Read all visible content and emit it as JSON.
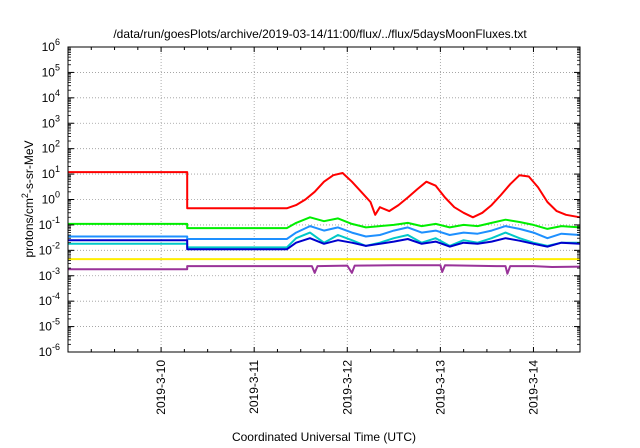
{
  "chart_data": {
    "type": "line",
    "title": "/data/run/goesPlots/archive/2019-03-14/11:00/flux/../flux/5daysMoonFluxes.txt",
    "xlabel": "Coordinated Universal Time (UTC)",
    "ylabel": {
      "base": "protons/cm",
      "exp": "2",
      "rest": "-s-sr-MeV"
    },
    "yscale": "log",
    "ylim": [
      1e-06,
      1000000.0
    ],
    "y_ticks": [
      {
        "base": "10",
        "exp": "-6",
        "value": -6
      },
      {
        "base": "10",
        "exp": "-5",
        "value": -5
      },
      {
        "base": "10",
        "exp": "-4",
        "value": -4
      },
      {
        "base": "10",
        "exp": "-3",
        "value": -3
      },
      {
        "base": "10",
        "exp": "-2",
        "value": -2
      },
      {
        "base": "10",
        "exp": "-1",
        "value": -1
      },
      {
        "base": "10",
        "exp": "0",
        "value": 0
      },
      {
        "base": "10",
        "exp": "1",
        "value": 1
      },
      {
        "base": "10",
        "exp": "2",
        "value": 2
      },
      {
        "base": "10",
        "exp": "3",
        "value": 3
      },
      {
        "base": "10",
        "exp": "4",
        "value": 4
      },
      {
        "base": "10",
        "exp": "5",
        "value": 5
      },
      {
        "base": "10",
        "exp": "6",
        "value": 6
      }
    ],
    "xlim": [
      9.0,
      14.5
    ],
    "x_ticks": [
      {
        "label": "2019-3-10",
        "value": 10
      },
      {
        "label": "2019-3-11",
        "value": 11
      },
      {
        "label": "2019-3-12",
        "value": 12
      },
      {
        "label": "2019-3-13",
        "value": 13
      },
      {
        "label": "2019-3-14",
        "value": 14
      }
    ],
    "grid": true,
    "series": [
      {
        "color": "#ff0000",
        "x": [
          9.0,
          10.28,
          10.28,
          11.35,
          11.45,
          11.55,
          11.65,
          11.75,
          11.85,
          11.95,
          12.05,
          12.15,
          12.25,
          12.3,
          12.35,
          12.45,
          12.55,
          12.65,
          12.75,
          12.85,
          12.95,
          13.05,
          13.15,
          13.25,
          13.35,
          13.45,
          13.55,
          13.65,
          13.75,
          13.85,
          13.95,
          14.05,
          14.15,
          14.25,
          14.35,
          14.5
        ],
        "y": [
          12,
          12,
          0.45,
          0.45,
          0.6,
          1.0,
          2.0,
          5.0,
          9.0,
          11.0,
          5.0,
          2.0,
          0.8,
          0.25,
          0.5,
          0.35,
          0.6,
          1.2,
          2.5,
          5.0,
          3.5,
          1.2,
          0.5,
          0.3,
          0.2,
          0.3,
          0.6,
          1.5,
          4.0,
          9.0,
          8.0,
          3.0,
          0.8,
          0.35,
          0.25,
          0.2
        ]
      },
      {
        "color": "#00ee00",
        "x": [
          9.0,
          10.28,
          10.28,
          11.35,
          11.45,
          11.6,
          11.75,
          11.9,
          12.05,
          12.2,
          12.35,
          12.5,
          12.65,
          12.8,
          12.95,
          13.1,
          13.25,
          13.4,
          13.55,
          13.7,
          13.85,
          14.0,
          14.15,
          14.3,
          14.5
        ],
        "y": [
          0.11,
          0.11,
          0.075,
          0.075,
          0.12,
          0.2,
          0.14,
          0.18,
          0.11,
          0.08,
          0.09,
          0.1,
          0.12,
          0.09,
          0.11,
          0.08,
          0.1,
          0.09,
          0.12,
          0.16,
          0.13,
          0.1,
          0.07,
          0.09,
          0.08
        ]
      },
      {
        "color": "#00c8c8",
        "x": [
          9.0,
          10.28,
          10.28,
          11.35,
          11.45,
          11.6,
          11.75,
          11.9,
          12.05,
          12.2,
          12.35,
          12.5,
          12.65,
          12.8,
          12.95,
          13.1,
          13.25,
          13.4,
          13.55,
          13.7,
          13.85,
          14.0,
          14.15,
          14.3,
          14.5
        ],
        "y": [
          0.018,
          0.018,
          0.013,
          0.013,
          0.03,
          0.05,
          0.02,
          0.04,
          0.025,
          0.015,
          0.02,
          0.03,
          0.04,
          0.02,
          0.03,
          0.015,
          0.025,
          0.02,
          0.03,
          0.05,
          0.03,
          0.02,
          0.015,
          0.02,
          0.02
        ]
      },
      {
        "color": "#1e90ff",
        "x": [
          9.0,
          10.28,
          10.28,
          11.35,
          11.45,
          11.6,
          11.75,
          11.9,
          12.05,
          12.2,
          12.35,
          12.5,
          12.65,
          12.8,
          12.95,
          13.1,
          13.25,
          13.4,
          13.55,
          13.7,
          13.85,
          14.0,
          14.15,
          14.3,
          14.5
        ],
        "y": [
          0.035,
          0.035,
          0.028,
          0.028,
          0.05,
          0.09,
          0.06,
          0.08,
          0.05,
          0.035,
          0.04,
          0.06,
          0.08,
          0.05,
          0.06,
          0.04,
          0.05,
          0.045,
          0.06,
          0.09,
          0.07,
          0.05,
          0.03,
          0.045,
          0.04
        ]
      },
      {
        "color": "#0000cd",
        "x": [
          9.0,
          10.28,
          10.28,
          11.35,
          11.45,
          11.6,
          11.75,
          11.9,
          12.05,
          12.2,
          12.35,
          12.5,
          12.65,
          12.8,
          12.95,
          13.1,
          13.25,
          13.4,
          13.55,
          13.7,
          13.85,
          14.0,
          14.15,
          14.3,
          14.5
        ],
        "y": [
          0.025,
          0.025,
          0.011,
          0.011,
          0.02,
          0.03,
          0.018,
          0.025,
          0.02,
          0.015,
          0.018,
          0.022,
          0.028,
          0.018,
          0.022,
          0.014,
          0.02,
          0.018,
          0.022,
          0.03,
          0.024,
          0.018,
          0.014,
          0.02,
          0.018
        ]
      },
      {
        "color": "#ffee00",
        "x": [
          9.0,
          10.28,
          10.28,
          14.5
        ],
        "y": [
          0.0045,
          0.0045,
          0.0045,
          0.0045
        ]
      },
      {
        "color": "#993399",
        "x": [
          9.0,
          10.28,
          10.28,
          11.35,
          11.5,
          11.62,
          11.65,
          11.68,
          12.0,
          12.05,
          12.08,
          12.5,
          13.0,
          13.02,
          13.05,
          13.6,
          13.7,
          13.72,
          13.75,
          14.0,
          14.2,
          14.5
        ],
        "y": [
          0.0018,
          0.0018,
          0.0024,
          0.0024,
          0.0024,
          0.0024,
          0.0013,
          0.0024,
          0.0025,
          0.0013,
          0.0025,
          0.0026,
          0.0026,
          0.0014,
          0.0026,
          0.0024,
          0.0024,
          0.0012,
          0.0024,
          0.0024,
          0.0022,
          0.0023
        ]
      }
    ]
  }
}
